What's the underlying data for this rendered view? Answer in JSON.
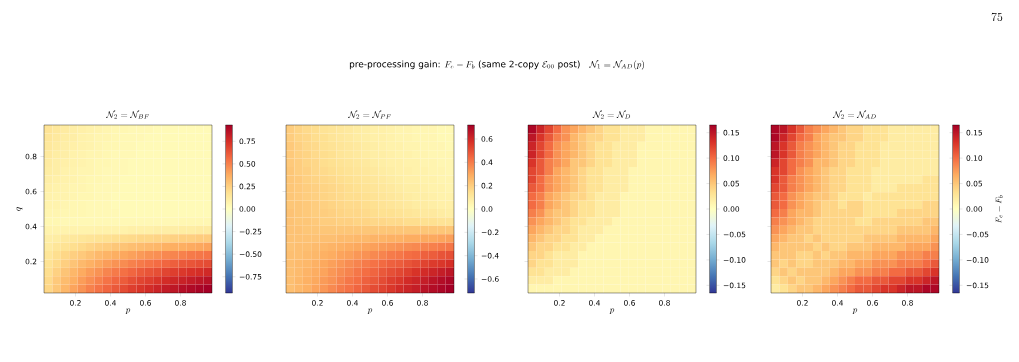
{
  "chart_data": [
    {
      "type": "heatmap",
      "title": "\\mathcal{N}_2 = \\mathcal{N}_{BF}",
      "xlabel": "p",
      "ylabel": "q",
      "annotations": [
        "\\text{pre-processing gain: }F_e - F_b\\text{ (same 2-copy }\\mathcal{E}_{00}\\text{ post)}\\quad \\mathcal{N}_1 = \\mathcal{N}_{AD}(p)",
        "75"
      ],
      "xlim": [
        0.02,
        0.98
      ],
      "ylim": [
        0.02,
        0.98
      ],
      "xticks": [
        0.2,
        0.4,
        0.6,
        0.8
      ],
      "yticks": [
        0.2,
        0.4,
        0.6,
        0.8
      ],
      "clim": [
        -0.93,
        0.93
      ],
      "cticks": [
        {
          "value": -0.75,
          "label": "−0.75"
        },
        {
          "value": -0.5,
          "label": "−0.50"
        },
        {
          "value": -0.25,
          "label": "−0.25"
        },
        {
          "value": 0,
          "label": "0.00"
        },
        0.25,
        {
          "value": 0.5,
          "label": "0.50"
        },
        0.75
      ],
      "cells": [
        [
          0.16,
          0.14,
          0.12,
          0.1,
          0.09,
          0.08,
          0.07,
          0.06,
          0.05,
          0.05,
          0.04,
          0.04,
          0.04,
          0.03,
          0.03,
          0.03,
          0.03,
          0.03,
          0.03,
          0.03
        ],
        [
          0.15,
          0.13,
          0.11,
          0.1,
          0.08,
          0.07,
          0.06,
          0.06,
          0.05,
          0.04,
          0.04,
          0.04,
          0.03,
          0.03,
          0.03,
          0.03,
          0.03,
          0.03,
          0.03,
          0.03
        ],
        [
          0.14,
          0.12,
          0.1,
          0.09,
          0.08,
          0.07,
          0.06,
          0.05,
          0.05,
          0.04,
          0.04,
          0.03,
          0.03,
          0.03,
          0.03,
          0.03,
          0.03,
          0.03,
          0.03,
          0.03
        ],
        [
          0.13,
          0.11,
          0.1,
          0.08,
          0.07,
          0.06,
          0.06,
          0.05,
          0.04,
          0.04,
          0.04,
          0.03,
          0.03,
          0.03,
          0.03,
          0.03,
          0.03,
          0.03,
          0.03,
          0.03
        ],
        [
          0.12,
          0.1,
          0.09,
          0.08,
          0.07,
          0.06,
          0.05,
          0.05,
          0.04,
          0.04,
          0.03,
          0.03,
          0.03,
          0.03,
          0.03,
          0.03,
          0.03,
          0.03,
          0.03,
          0.03
        ],
        [
          0.11,
          0.1,
          0.08,
          0.07,
          0.06,
          0.06,
          0.05,
          0.04,
          0.04,
          0.04,
          0.03,
          0.03,
          0.03,
          0.03,
          0.03,
          0.03,
          0.03,
          0.03,
          0.03,
          0.03
        ],
        [
          0.1,
          0.09,
          0.08,
          0.07,
          0.06,
          0.05,
          0.05,
          0.04,
          0.04,
          0.03,
          0.03,
          0.03,
          0.03,
          0.03,
          0.03,
          0.03,
          0.03,
          0.03,
          0.03,
          0.03
        ],
        [
          0.09,
          0.08,
          0.07,
          0.06,
          0.06,
          0.05,
          0.04,
          0.04,
          0.04,
          0.03,
          0.03,
          0.03,
          0.03,
          0.03,
          0.03,
          0.03,
          0.03,
          0.03,
          0.03,
          0.03
        ],
        [
          0.08,
          0.07,
          0.07,
          0.06,
          0.05,
          0.05,
          0.04,
          0.04,
          0.03,
          0.03,
          0.03,
          0.03,
          0.03,
          0.03,
          0.03,
          0.03,
          0.03,
          0.03,
          0.03,
          0.03
        ],
        [
          0.07,
          0.07,
          0.06,
          0.05,
          0.05,
          0.04,
          0.04,
          0.04,
          0.03,
          0.03,
          0.03,
          0.03,
          0.03,
          0.03,
          0.03,
          0.03,
          0.03,
          0.03,
          0.03,
          0.03
        ],
        [
          0.06,
          0.06,
          0.05,
          0.05,
          0.05,
          0.04,
          0.04,
          0.04,
          0.04,
          0.03,
          0.03,
          0.03,
          0.03,
          0.03,
          0.03,
          0.03,
          0.03,
          0.03,
          0.03,
          0.03
        ],
        [
          0.05,
          0.05,
          0.04,
          0.04,
          0.04,
          0.04,
          0.04,
          0.04,
          0.04,
          0.04,
          0.04,
          0.04,
          0.04,
          0.04,
          0.04,
          0.04,
          0.05,
          0.05,
          0.05,
          0.05
        ],
        [
          0.07,
          0.07,
          0.07,
          0.07,
          0.07,
          0.07,
          0.08,
          0.08,
          0.08,
          0.08,
          0.09,
          0.09,
          0.09,
          0.1,
          0.1,
          0.1,
          0.11,
          0.11,
          0.12,
          0.12
        ],
        [
          0.1,
          0.11,
          0.13,
          0.14,
          0.15,
          0.16,
          0.17,
          0.18,
          0.19,
          0.2,
          0.21,
          0.22,
          0.22,
          0.23,
          0.23,
          0.24,
          0.25,
          0.25,
          0.26,
          0.26
        ],
        [
          0.12,
          0.15,
          0.17,
          0.19,
          0.21,
          0.23,
          0.25,
          0.26,
          0.28,
          0.29,
          0.31,
          0.32,
          0.33,
          0.34,
          0.36,
          0.37,
          0.37,
          0.38,
          0.39,
          0.4
        ],
        [
          0.15,
          0.19,
          0.22,
          0.25,
          0.27,
          0.3,
          0.33,
          0.35,
          0.37,
          0.39,
          0.41,
          0.43,
          0.45,
          0.46,
          0.48,
          0.49,
          0.5,
          0.52,
          0.53,
          0.54
        ],
        [
          0.17,
          0.21,
          0.25,
          0.29,
          0.33,
          0.36,
          0.39,
          0.42,
          0.45,
          0.47,
          0.5,
          0.52,
          0.54,
          0.56,
          0.58,
          0.6,
          0.62,
          0.63,
          0.65,
          0.66
        ],
        [
          0.19,
          0.24,
          0.29,
          0.34,
          0.38,
          0.42,
          0.45,
          0.49,
          0.52,
          0.55,
          0.58,
          0.61,
          0.63,
          0.65,
          0.68,
          0.7,
          0.72,
          0.74,
          0.75,
          0.77
        ],
        [
          0.21,
          0.27,
          0.32,
          0.37,
          0.42,
          0.46,
          0.5,
          0.54,
          0.58,
          0.61,
          0.65,
          0.68,
          0.7,
          0.73,
          0.76,
          0.78,
          0.8,
          0.82,
          0.84,
          0.86
        ],
        [
          0.22,
          0.28,
          0.34,
          0.4,
          0.45,
          0.5,
          0.54,
          0.58,
          0.62,
          0.66,
          0.7,
          0.73,
          0.76,
          0.79,
          0.82,
          0.84,
          0.87,
          0.89,
          0.91,
          0.93
        ]
      ]
    },
    {
      "type": "heatmap",
      "title": "\\mathcal{N}_2 = \\mathcal{N}_{PF}",
      "xlabel": "p",
      "tick_labels": "x",
      "xlim": [
        0.02,
        0.98
      ],
      "ylim": [
        0.02,
        0.98
      ],
      "xticks": [
        0.2,
        0.4,
        0.6,
        0.8
      ],
      "yticks": [
        {
          "value": 0.2,
          "label": null
        },
        {
          "value": 0.4,
          "label": null
        },
        {
          "value": 0.6,
          "label": null
        },
        {
          "value": 0.8,
          "label": null
        }
      ],
      "clim": [
        -0.72,
        0.72
      ],
      "cticks": [
        {
          "value": -0.6,
          "label": "−0.6"
        },
        {
          "value": -0.4,
          "label": "−0.4"
        },
        {
          "value": -0.2,
          "label": "−0.2"
        },
        {
          "value": 0,
          "label": "0.0"
        },
        0.2,
        0.4,
        0.6
      ],
      "cells": [
        [
          0.2,
          0.18,
          0.16,
          0.15,
          0.13,
          0.12,
          0.11,
          0.1,
          0.09,
          0.08,
          0.07,
          0.07,
          0.06,
          0.05,
          0.05,
          0.04,
          0.04,
          0.04,
          0.03,
          0.03
        ],
        [
          0.2,
          0.18,
          0.17,
          0.15,
          0.14,
          0.12,
          0.11,
          0.1,
          0.09,
          0.08,
          0.07,
          0.07,
          0.06,
          0.05,
          0.05,
          0.04,
          0.04,
          0.04,
          0.03,
          0.03
        ],
        [
          0.21,
          0.19,
          0.17,
          0.16,
          0.14,
          0.13,
          0.12,
          0.11,
          0.1,
          0.09,
          0.08,
          0.07,
          0.06,
          0.06,
          0.05,
          0.05,
          0.04,
          0.04,
          0.04,
          0.03
        ],
        [
          0.21,
          0.19,
          0.18,
          0.16,
          0.15,
          0.14,
          0.12,
          0.11,
          0.1,
          0.09,
          0.08,
          0.08,
          0.07,
          0.06,
          0.06,
          0.05,
          0.05,
          0.04,
          0.04,
          0.04
        ],
        [
          0.21,
          0.2,
          0.18,
          0.17,
          0.15,
          0.14,
          0.13,
          0.12,
          0.11,
          0.1,
          0.09,
          0.08,
          0.07,
          0.07,
          0.06,
          0.06,
          0.05,
          0.05,
          0.04,
          0.04
        ],
        [
          0.22,
          0.2,
          0.19,
          0.17,
          0.16,
          0.15,
          0.14,
          0.13,
          0.12,
          0.11,
          0.1,
          0.09,
          0.08,
          0.07,
          0.07,
          0.06,
          0.06,
          0.05,
          0.05,
          0.04
        ],
        [
          0.22,
          0.21,
          0.19,
          0.18,
          0.17,
          0.16,
          0.15,
          0.14,
          0.13,
          0.12,
          0.11,
          0.1,
          0.09,
          0.08,
          0.07,
          0.07,
          0.06,
          0.06,
          0.05,
          0.05
        ],
        [
          0.22,
          0.21,
          0.2,
          0.19,
          0.18,
          0.17,
          0.16,
          0.15,
          0.14,
          0.13,
          0.12,
          0.11,
          0.1,
          0.09,
          0.08,
          0.08,
          0.07,
          0.06,
          0.06,
          0.05
        ],
        [
          0.22,
          0.21,
          0.2,
          0.19,
          0.18,
          0.17,
          0.16,
          0.15,
          0.15,
          0.14,
          0.13,
          0.12,
          0.11,
          0.1,
          0.09,
          0.08,
          0.08,
          0.07,
          0.06,
          0.06
        ],
        [
          0.22,
          0.22,
          0.21,
          0.2,
          0.19,
          0.18,
          0.17,
          0.16,
          0.16,
          0.15,
          0.14,
          0.13,
          0.12,
          0.11,
          0.1,
          0.09,
          0.09,
          0.08,
          0.07,
          0.07
        ],
        [
          0.23,
          0.22,
          0.21,
          0.2,
          0.2,
          0.19,
          0.18,
          0.17,
          0.17,
          0.16,
          0.15,
          0.14,
          0.14,
          0.13,
          0.12,
          0.11,
          0.1,
          0.1,
          0.09,
          0.08
        ],
        [
          0.23,
          0.22,
          0.22,
          0.21,
          0.2,
          0.2,
          0.19,
          0.19,
          0.18,
          0.18,
          0.17,
          0.17,
          0.16,
          0.16,
          0.15,
          0.15,
          0.14,
          0.14,
          0.13,
          0.13
        ],
        [
          0.23,
          0.23,
          0.22,
          0.22,
          0.22,
          0.22,
          0.22,
          0.22,
          0.22,
          0.22,
          0.22,
          0.22,
          0.22,
          0.22,
          0.22,
          0.22,
          0.22,
          0.22,
          0.22,
          0.22
        ],
        [
          0.23,
          0.23,
          0.23,
          0.23,
          0.24,
          0.24,
          0.25,
          0.25,
          0.26,
          0.26,
          0.27,
          0.27,
          0.28,
          0.28,
          0.29,
          0.29,
          0.3,
          0.3,
          0.31,
          0.32
        ],
        [
          0.23,
          0.24,
          0.24,
          0.25,
          0.26,
          0.27,
          0.28,
          0.29,
          0.3,
          0.31,
          0.32,
          0.33,
          0.34,
          0.35,
          0.36,
          0.37,
          0.38,
          0.39,
          0.4,
          0.41
        ],
        [
          0.24,
          0.24,
          0.25,
          0.26,
          0.28,
          0.29,
          0.31,
          0.32,
          0.34,
          0.35,
          0.37,
          0.38,
          0.4,
          0.41,
          0.43,
          0.44,
          0.46,
          0.47,
          0.49,
          0.5
        ],
        [
          0.24,
          0.25,
          0.26,
          0.28,
          0.3,
          0.32,
          0.34,
          0.36,
          0.38,
          0.4,
          0.42,
          0.44,
          0.46,
          0.47,
          0.49,
          0.51,
          0.53,
          0.55,
          0.56,
          0.58
        ],
        [
          0.24,
          0.25,
          0.27,
          0.29,
          0.31,
          0.34,
          0.36,
          0.38,
          0.41,
          0.43,
          0.45,
          0.48,
          0.5,
          0.52,
          0.54,
          0.57,
          0.59,
          0.61,
          0.63,
          0.65
        ],
        [
          0.24,
          0.26,
          0.28,
          0.3,
          0.33,
          0.35,
          0.38,
          0.41,
          0.43,
          0.46,
          0.48,
          0.51,
          0.54,
          0.56,
          0.59,
          0.61,
          0.63,
          0.66,
          0.68,
          0.7
        ],
        [
          0.24,
          0.26,
          0.28,
          0.31,
          0.34,
          0.37,
          0.4,
          0.42,
          0.45,
          0.48,
          0.51,
          0.53,
          0.56,
          0.59,
          0.61,
          0.63,
          0.66,
          0.68,
          0.7,
          0.72
        ]
      ]
    },
    {
      "type": "heatmap",
      "title": "\\mathcal{N}_2 = \\mathcal{N}_{D}",
      "xlabel": "p",
      "tick_labels": "x",
      "xlim": [
        0.02,
        0.98
      ],
      "ylim": [
        0.02,
        0.98
      ],
      "xticks": [
        0.2,
        0.4,
        0.6,
        0.8
      ],
      "yticks": [
        {
          "value": 0.2,
          "label": null
        },
        {
          "value": 0.4,
          "label": null
        },
        {
          "value": 0.6,
          "label": null
        },
        {
          "value": 0.8,
          "label": null
        }
      ],
      "clim": [
        -0.165,
        0.165
      ],
      "cticks": [
        {
          "value": -0.15,
          "label": "−0.15"
        },
        {
          "value": -0.1,
          "label": "−0.10"
        },
        {
          "value": -0.05,
          "label": "−0.05"
        },
        {
          "value": 0,
          "label": "0.00"
        },
        0.05,
        {
          "value": 0.1,
          "label": "0.10"
        },
        0.15
      ],
      "cells": [
        [
          0.16,
          0.14,
          0.12,
          0.1,
          0.08,
          0.07,
          0.06,
          0.05,
          0.04,
          0.03,
          0.03,
          0.02,
          0.02,
          0.02,
          0.01,
          0.01,
          0.01,
          0.01,
          0.01,
          0.01
        ],
        [
          0.15,
          0.13,
          0.11,
          0.09,
          0.08,
          0.06,
          0.05,
          0.04,
          0.04,
          0.03,
          0.03,
          0.02,
          0.02,
          0.02,
          0.01,
          0.01,
          0.01,
          0.01,
          0.01,
          0.01
        ],
        [
          0.14,
          0.12,
          0.1,
          0.08,
          0.07,
          0.06,
          0.05,
          0.04,
          0.03,
          0.03,
          0.02,
          0.02,
          0.02,
          0.01,
          0.01,
          0.01,
          0.01,
          0.01,
          0.01,
          0.01
        ],
        [
          0.14,
          0.12,
          0.1,
          0.08,
          0.07,
          0.06,
          0.05,
          0.04,
          0.03,
          0.03,
          0.02,
          0.02,
          0.02,
          0.01,
          0.01,
          0.01,
          0.01,
          0.01,
          0.01,
          0.01
        ],
        [
          0.13,
          0.11,
          0.09,
          0.08,
          0.07,
          0.05,
          0.05,
          0.04,
          0.03,
          0.03,
          0.02,
          0.02,
          0.02,
          0.01,
          0.01,
          0.01,
          0.01,
          0.01,
          0.01,
          0.01
        ],
        [
          0.12,
          0.11,
          0.09,
          0.07,
          0.06,
          0.05,
          0.04,
          0.03,
          0.03,
          0.02,
          0.02,
          0.02,
          0.01,
          0.01,
          0.01,
          0.01,
          0.01,
          0.01,
          0.01,
          0.01
        ],
        [
          0.12,
          0.1,
          0.08,
          0.07,
          0.06,
          0.05,
          0.04,
          0.03,
          0.03,
          0.02,
          0.02,
          0.02,
          0.01,
          0.01,
          0.01,
          0.01,
          0.01,
          0.01,
          0.01,
          0.01
        ],
        [
          0.11,
          0.1,
          0.08,
          0.07,
          0.06,
          0.05,
          0.04,
          0.03,
          0.03,
          0.02,
          0.02,
          0.02,
          0.01,
          0.01,
          0.01,
          0.01,
          0.01,
          0.01,
          0.01,
          0.01
        ],
        [
          0.1,
          0.09,
          0.07,
          0.06,
          0.05,
          0.04,
          0.04,
          0.03,
          0.02,
          0.02,
          0.02,
          0.01,
          0.01,
          0.01,
          0.01,
          0.01,
          0.01,
          0.01,
          0.01,
          0.01
        ],
        [
          0.1,
          0.09,
          0.07,
          0.06,
          0.05,
          0.04,
          0.03,
          0.03,
          0.02,
          0.02,
          0.02,
          0.01,
          0.01,
          0.01,
          0.01,
          0.01,
          0.01,
          0.01,
          0.01,
          0.01
        ],
        [
          0.09,
          0.08,
          0.06,
          0.05,
          0.05,
          0.04,
          0.03,
          0.03,
          0.02,
          0.02,
          0.02,
          0.01,
          0.01,
          0.01,
          0.01,
          0.01,
          0.01,
          0.01,
          0.01,
          0.01
        ],
        [
          0.08,
          0.07,
          0.06,
          0.05,
          0.04,
          0.03,
          0.03,
          0.02,
          0.02,
          0.02,
          0.01,
          0.01,
          0.01,
          0.01,
          0.01,
          0.01,
          0.01,
          0.01,
          0.01,
          0.01
        ],
        [
          0.07,
          0.06,
          0.05,
          0.04,
          0.04,
          0.03,
          0.02,
          0.02,
          0.02,
          0.01,
          0.01,
          0.01,
          0.01,
          0.01,
          0.01,
          0.01,
          0.01,
          0.01,
          0.01,
          0.01
        ],
        [
          0.06,
          0.05,
          0.04,
          0.04,
          0.03,
          0.03,
          0.02,
          0.02,
          0.01,
          0.01,
          0.01,
          0.01,
          0.01,
          0.01,
          0.01,
          0.01,
          0.01,
          0.01,
          0.01,
          0.01
        ],
        [
          0.05,
          0.04,
          0.04,
          0.03,
          0.03,
          0.02,
          0.02,
          0.01,
          0.01,
          0.01,
          0.01,
          0.01,
          0.01,
          0.01,
          0.01,
          0.01,
          0.01,
          0.01,
          0.01,
          0.01
        ],
        [
          0.04,
          0.04,
          0.03,
          0.02,
          0.02,
          0.02,
          0.01,
          0.01,
          0.01,
          0.01,
          0.01,
          0.01,
          0.01,
          0.01,
          0.01,
          0.01,
          0.01,
          0.01,
          0.01,
          0.01
        ],
        [
          0.04,
          0.03,
          0.03,
          0.02,
          0.02,
          0.02,
          0.01,
          0.01,
          0.01,
          0.01,
          0.01,
          0.01,
          0.01,
          0.01,
          0.01,
          0.01,
          0.01,
          0.01,
          0.01,
          0.01
        ],
        [
          0.03,
          0.03,
          0.02,
          0.02,
          0.02,
          0.01,
          0.01,
          0.01,
          0.01,
          0.01,
          0.01,
          0.01,
          0.01,
          0.01,
          0.01,
          0.01,
          0.01,
          0.01,
          0.01,
          0.01
        ],
        [
          0.02,
          0.02,
          0.02,
          0.01,
          0.01,
          0.01,
          0.01,
          0.01,
          0.01,
          0.01,
          0.01,
          0.01,
          0.01,
          0.01,
          0.01,
          0.01,
          0.01,
          0.01,
          0.01,
          0.01
        ],
        [
          0.01,
          0.01,
          0.01,
          0.01,
          0.01,
          0.01,
          0.01,
          0.01,
          0.01,
          0.01,
          0.01,
          0.01,
          0.01,
          0.01,
          0.01,
          0.01,
          0.01,
          0.01,
          0.01,
          0.01
        ]
      ]
    },
    {
      "type": "heatmap",
      "title": "\\mathcal{N}_2 = \\mathcal{N}_{AD}",
      "xlabel": "p",
      "clabel": "F_e - F_b",
      "tick_labels": "x",
      "xlim": [
        0.02,
        0.98
      ],
      "ylim": [
        0.02,
        0.98
      ],
      "xticks": [
        0.2,
        0.4,
        0.6,
        0.8
      ],
      "yticks": [
        {
          "value": 0.2,
          "label": null
        },
        {
          "value": 0.4,
          "label": null
        },
        {
          "value": 0.6,
          "label": null
        },
        {
          "value": 0.8,
          "label": null
        }
      ],
      "clim": [
        -0.165,
        0.165
      ],
      "cticks": [
        {
          "value": -0.15,
          "label": "−0.15"
        },
        {
          "value": -0.1,
          "label": "−0.10"
        },
        {
          "value": -0.05,
          "label": "−0.05"
        },
        {
          "value": 0,
          "label": "0.00"
        },
        0.05,
        {
          "value": 0.1,
          "label": "0.10"
        },
        0.15
      ],
      "cells": [
        [
          0.16,
          0.15,
          0.13,
          0.11,
          0.09,
          0.08,
          0.07,
          0.06,
          0.05,
          0.04,
          0.04,
          0.03,
          0.03,
          0.03,
          0.02,
          0.02,
          0.02,
          0.02,
          0.02,
          0.02
        ],
        [
          0.16,
          0.14,
          0.12,
          0.1,
          0.09,
          0.07,
          0.06,
          0.05,
          0.05,
          0.04,
          0.04,
          0.03,
          0.03,
          0.03,
          0.02,
          0.02,
          0.02,
          0.02,
          0.02,
          0.02
        ],
        [
          0.15,
          0.13,
          0.11,
          0.09,
          0.08,
          0.07,
          0.06,
          0.05,
          0.04,
          0.04,
          0.03,
          0.03,
          0.03,
          0.02,
          0.02,
          0.02,
          0.02,
          0.02,
          0.02,
          0.02
        ],
        [
          0.15,
          0.13,
          0.11,
          0.09,
          0.08,
          0.07,
          0.06,
          0.05,
          0.04,
          0.04,
          0.03,
          0.03,
          0.03,
          0.02,
          0.02,
          0.02,
          0.02,
          0.02,
          0.02,
          0.02
        ],
        [
          0.14,
          0.12,
          0.1,
          0.09,
          0.08,
          0.06,
          0.06,
          0.05,
          0.04,
          0.04,
          0.03,
          0.03,
          0.03,
          0.02,
          0.02,
          0.02,
          0.02,
          0.02,
          0.02,
          0.02
        ],
        [
          0.13,
          0.12,
          0.1,
          0.08,
          0.07,
          0.06,
          0.05,
          0.04,
          0.04,
          0.03,
          0.03,
          0.03,
          0.02,
          0.02,
          0.02,
          0.02,
          0.02,
          0.02,
          0.02,
          0.02
        ],
        [
          0.13,
          0.11,
          0.09,
          0.08,
          0.07,
          0.06,
          0.05,
          0.04,
          0.04,
          0.03,
          0.03,
          0.03,
          0.02,
          0.02,
          0.02,
          0.02,
          0.02,
          0.02,
          0.03,
          0.03
        ],
        [
          0.12,
          0.11,
          0.09,
          0.08,
          0.07,
          0.06,
          0.05,
          0.04,
          0.04,
          0.03,
          0.03,
          0.03,
          0.02,
          0.02,
          0.02,
          0.03,
          0.03,
          0.03,
          0.03,
          0.03
        ],
        [
          0.11,
          0.1,
          0.08,
          0.07,
          0.06,
          0.05,
          0.05,
          0.04,
          0.03,
          0.03,
          0.03,
          0.02,
          0.03,
          0.03,
          0.03,
          0.03,
          0.03,
          0.03,
          0.03,
          0.03
        ],
        [
          0.11,
          0.1,
          0.08,
          0.07,
          0.06,
          0.05,
          0.04,
          0.04,
          0.03,
          0.04,
          0.04,
          0.03,
          0.03,
          0.03,
          0.03,
          0.03,
          0.03,
          0.03,
          0.04,
          0.04
        ],
        [
          0.1,
          0.09,
          0.07,
          0.06,
          0.06,
          0.05,
          0.04,
          0.04,
          0.04,
          0.04,
          0.04,
          0.03,
          0.03,
          0.03,
          0.03,
          0.04,
          0.04,
          0.04,
          0.04,
          0.04
        ],
        [
          0.09,
          0.08,
          0.07,
          0.06,
          0.05,
          0.04,
          0.04,
          0.04,
          0.04,
          0.04,
          0.03,
          0.03,
          0.04,
          0.04,
          0.04,
          0.04,
          0.04,
          0.04,
          0.05,
          0.05
        ],
        [
          0.08,
          0.07,
          0.06,
          0.05,
          0.05,
          0.04,
          0.04,
          0.04,
          0.04,
          0.04,
          0.04,
          0.04,
          0.04,
          0.04,
          0.04,
          0.05,
          0.05,
          0.05,
          0.05,
          0.06
        ],
        [
          0.07,
          0.06,
          0.05,
          0.05,
          0.04,
          0.05,
          0.04,
          0.04,
          0.04,
          0.04,
          0.04,
          0.05,
          0.05,
          0.05,
          0.05,
          0.06,
          0.06,
          0.06,
          0.06,
          0.07
        ],
        [
          0.06,
          0.05,
          0.05,
          0.05,
          0.05,
          0.04,
          0.05,
          0.04,
          0.04,
          0.05,
          0.05,
          0.05,
          0.06,
          0.06,
          0.06,
          0.06,
          0.07,
          0.07,
          0.07,
          0.08
        ],
        [
          0.05,
          0.05,
          0.05,
          0.04,
          0.04,
          0.05,
          0.04,
          0.05,
          0.05,
          0.06,
          0.06,
          0.06,
          0.07,
          0.07,
          0.07,
          0.08,
          0.08,
          0.08,
          0.09,
          0.09
        ],
        [
          0.05,
          0.04,
          0.05,
          0.04,
          0.04,
          0.05,
          0.05,
          0.05,
          0.06,
          0.06,
          0.07,
          0.07,
          0.08,
          0.08,
          0.08,
          0.09,
          0.09,
          0.09,
          0.1,
          0.11
        ],
        [
          0.04,
          0.05,
          0.04,
          0.05,
          0.05,
          0.05,
          0.05,
          0.06,
          0.07,
          0.07,
          0.08,
          0.08,
          0.09,
          0.09,
          0.1,
          0.1,
          0.11,
          0.11,
          0.12,
          0.13
        ],
        [
          0.03,
          0.04,
          0.05,
          0.04,
          0.05,
          0.05,
          0.06,
          0.07,
          0.08,
          0.09,
          0.1,
          0.1,
          0.11,
          0.11,
          0.12,
          0.12,
          0.13,
          0.13,
          0.14,
          0.15
        ],
        [
          0.02,
          0.03,
          0.04,
          0.05,
          0.05,
          0.06,
          0.07,
          0.08,
          0.09,
          0.1,
          0.11,
          0.11,
          0.12,
          0.13,
          0.13,
          0.14,
          0.15,
          0.15,
          0.16,
          0.16
        ]
      ]
    }
  ]
}
